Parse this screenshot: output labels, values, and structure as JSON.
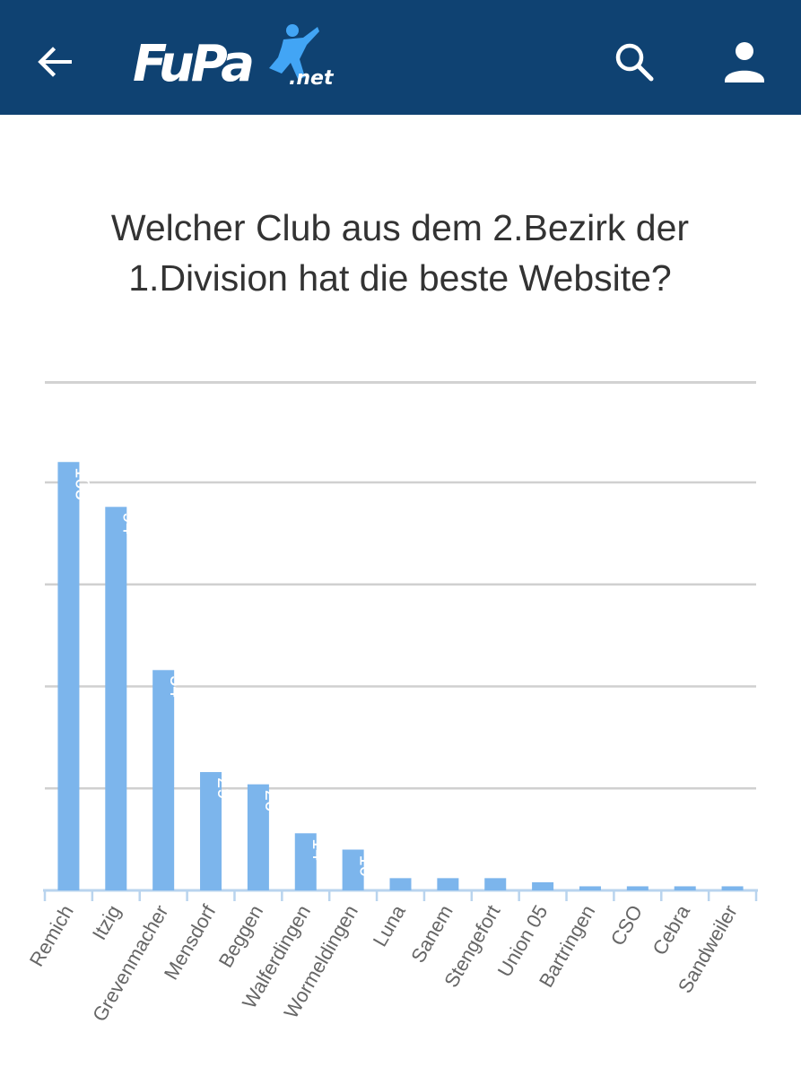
{
  "header": {
    "logo_text": "FuPa",
    "logo_suffix": ".net",
    "back_icon": "arrow-left-icon",
    "search_icon": "search-icon",
    "user_icon": "user-icon",
    "background_color": "#0f4272"
  },
  "chart_data": {
    "type": "bar",
    "title": "Welcher Club aus dem 2.Bezirk der 1.Division hat die beste Website?",
    "xlabel": "",
    "ylabel": "",
    "categories": [
      "Remich",
      "Itzig",
      "Grevenmacher",
      "Mensdorf",
      "Beggen",
      "Walferdingen",
      "Wormeldingen",
      "Luna",
      "Sanem",
      "Stengefort",
      "Union 05",
      "Bartringen",
      "CSO",
      "Cebra",
      "Sandweiler"
    ],
    "values": [
      105,
      94,
      54,
      29,
      26,
      14,
      10,
      3,
      3,
      3,
      2,
      1,
      1,
      1,
      1
    ],
    "ylim": [
      0,
      125
    ],
    "grid": true,
    "legend": "none",
    "bar_color": "#7cb5ec"
  }
}
